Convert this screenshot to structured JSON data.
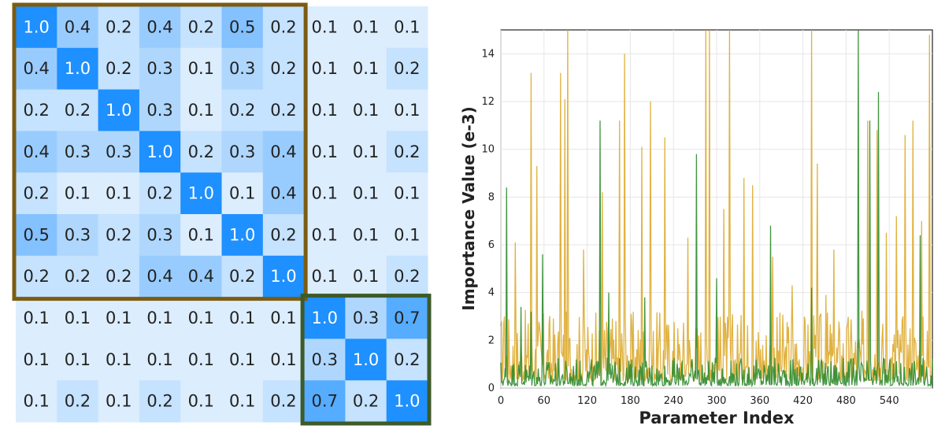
{
  "chart_data": [
    {
      "type": "heatmap",
      "title": "",
      "cell_color_low": "#f2f8fe",
      "cell_color_high": "#1e90ff",
      "matrix": [
        [
          "1.0",
          "0.4",
          "0.2",
          "0.4",
          "0.2",
          "0.5",
          "0.2",
          "0.1",
          "0.1",
          "0.1"
        ],
        [
          "0.4",
          "1.0",
          "0.2",
          "0.3",
          "0.1",
          "0.3",
          "0.2",
          "0.1",
          "0.1",
          "0.2"
        ],
        [
          "0.2",
          "0.2",
          "1.0",
          "0.3",
          "0.1",
          "0.2",
          "0.2",
          "0.1",
          "0.1",
          "0.1"
        ],
        [
          "0.4",
          "0.3",
          "0.3",
          "1.0",
          "0.2",
          "0.3",
          "0.4",
          "0.1",
          "0.1",
          "0.2"
        ],
        [
          "0.2",
          "0.1",
          "0.1",
          "0.2",
          "1.0",
          "0.1",
          "0.4",
          "0.1",
          "0.1",
          "0.1"
        ],
        [
          "0.5",
          "0.3",
          "0.2",
          "0.3",
          "0.1",
          "1.0",
          "0.2",
          "0.1",
          "0.1",
          "0.1"
        ],
        [
          "0.2",
          "0.2",
          "0.2",
          "0.4",
          "0.4",
          "0.2",
          "1.0",
          "0.1",
          "0.1",
          "0.2"
        ],
        [
          "0.1",
          "0.1",
          "0.1",
          "0.1",
          "0.1",
          "0.1",
          "0.1",
          "1.0",
          "0.3",
          "0.7"
        ],
        [
          "0.1",
          "0.1",
          "0.1",
          "0.1",
          "0.1",
          "0.1",
          "0.1",
          "0.3",
          "1.0",
          "0.2"
        ],
        [
          "0.1",
          "0.2",
          "0.1",
          "0.2",
          "0.1",
          "0.1",
          "0.2",
          "0.7",
          "0.2",
          "1.0"
        ]
      ],
      "groups": [
        {
          "start": 0,
          "end": 6,
          "color": "#7a5c12"
        },
        {
          "start": 7,
          "end": 9,
          "color": "#3d5a2a"
        }
      ]
    },
    {
      "type": "line",
      "xlabel": "Parameter Index",
      "ylabel": "Importance Value (e-3)",
      "xlim": [
        0,
        600
      ],
      "ylim": [
        0,
        15
      ],
      "xticks": [
        0,
        60,
        120,
        180,
        240,
        300,
        360,
        420,
        480,
        540
      ],
      "yticks": [
        0,
        2,
        4,
        6,
        8,
        10,
        12,
        14
      ],
      "grid": true,
      "series": [
        {
          "color": "#daa520",
          "spikes": [
            [
              5,
              3.0
            ],
            [
              20,
              6.1
            ],
            [
              42,
              13.2
            ],
            [
              50,
              9.3
            ],
            [
              83,
              13.2
            ],
            [
              89,
              12.1
            ],
            [
              93,
              15
            ],
            [
              115,
              5.8
            ],
            [
              141,
              8.2
            ],
            [
              165,
              11.2
            ],
            [
              172,
              14.0
            ],
            [
              196,
              10.1
            ],
            [
              208,
              12.0
            ],
            [
              228,
              10.5
            ],
            [
              260,
              6.3
            ],
            [
              285,
              15
            ],
            [
              290,
              15
            ],
            [
              310,
              7.5
            ],
            [
              318,
              15
            ],
            [
              338,
              8.8
            ],
            [
              350,
              8.5
            ],
            [
              378,
              5.5
            ],
            [
              405,
              4.3
            ],
            [
              432,
              15
            ],
            [
              440,
              9.4
            ],
            [
              452,
              3.9
            ],
            [
              463,
              5.8
            ],
            [
              510,
              11.2
            ],
            [
              523,
              10.8
            ],
            [
              536,
              6.5
            ],
            [
              550,
              7.2
            ],
            [
              562,
              10.6
            ],
            [
              573,
              11.2
            ],
            [
              585,
              7.0
            ],
            [
              596,
              14.8
            ]
          ],
          "baseline": [
            0.3,
            2.6
          ]
        },
        {
          "color": "#2e8b2e",
          "spikes": [
            [
              8,
              8.4
            ],
            [
              28,
              3.4
            ],
            [
              42,
              3.2
            ],
            [
              58,
              5.6
            ],
            [
              138,
              11.2
            ],
            [
              150,
              4.0
            ],
            [
              200,
              3.8
            ],
            [
              272,
              9.8
            ],
            [
              300,
              4.6
            ],
            [
              375,
              6.8
            ],
            [
              432,
              4.2
            ],
            [
              497,
              15
            ],
            [
              513,
              11.2
            ],
            [
              525,
              12.4
            ],
            [
              583,
              6.4
            ]
          ],
          "baseline": [
            0.1,
            1.0
          ]
        }
      ]
    }
  ]
}
